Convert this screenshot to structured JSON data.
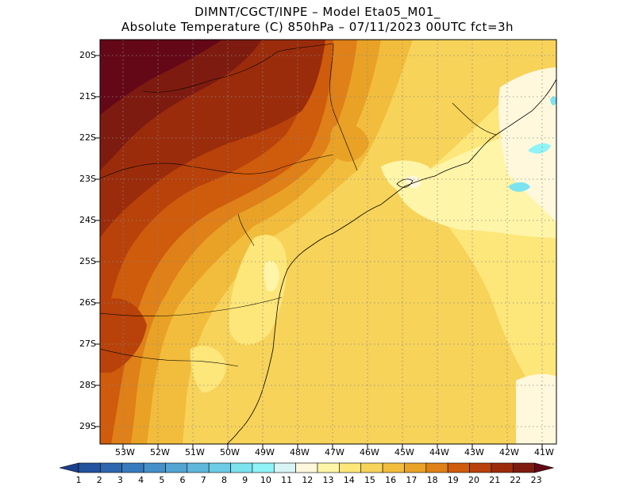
{
  "title": {
    "line1": "DIMNT/CGCT/INPE –  Model Eta05_M01_",
    "line2": "Absolute Temperature (C) 850hPa –  07/11/2023 00UTC fct=3h"
  },
  "map": {
    "lat_labels": [
      "20S",
      "21S",
      "22S",
      "23S",
      "24S",
      "25S",
      "26S",
      "27S",
      "28S",
      "29S"
    ],
    "lon_labels": [
      "53W",
      "52W",
      "51W",
      "50W",
      "49W",
      "48W",
      "47W",
      "46W",
      "45W",
      "44W",
      "43W",
      "42W",
      "41W"
    ],
    "field": "temperature-850hPa"
  },
  "colorbar": {
    "labels": [
      "1",
      "2",
      "3",
      "4",
      "5",
      "6",
      "7",
      "8",
      "9",
      "10",
      "11",
      "12",
      "13",
      "14",
      "15",
      "16",
      "17",
      "18",
      "19",
      "20",
      "21",
      "22",
      "23"
    ],
    "colors": [
      "#1c3f8c",
      "#23539e",
      "#2e67ae",
      "#387bbd",
      "#4590c8",
      "#52a4d2",
      "#5fb8dc",
      "#6dcce6",
      "#7ce3ef",
      "#8ff3f7",
      "#d8f4f4",
      "#fff8dc",
      "#fff5a8",
      "#fde67a",
      "#f7d35a",
      "#f2bd3c",
      "#e9a226",
      "#df8018",
      "#cf5b0c",
      "#b8420a",
      "#9b2c0b",
      "#7e1b10",
      "#640818"
    ]
  }
}
